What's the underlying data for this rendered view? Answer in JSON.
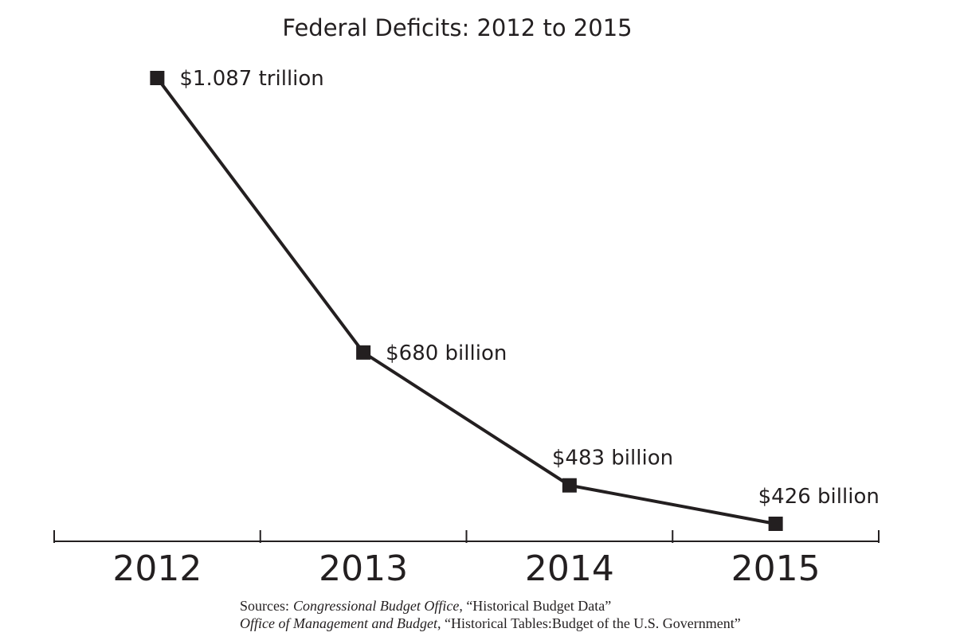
{
  "chart_data": {
    "type": "line",
    "title": "Federal Deficits: 2012 to 2015",
    "categories": [
      "2012",
      "2013",
      "2014",
      "2015"
    ],
    "series": [
      {
        "color": "#231f20",
        "values": [
          1087,
          680,
          483,
          426
        ],
        "value_labels": [
          "$1.087 trillion",
          "$680 billion",
          "$483 billion",
          "$426 billion"
        ]
      }
    ],
    "sources": [
      [
        {
          "text": "Sources:"
        },
        {
          "text": "Congressional Budget Office",
          "italic": true
        },
        {
          "text": ", “Historical Budget Data”"
        }
      ],
      [
        {
          "text": "Office of Management and Budget",
          "italic": true
        },
        {
          "text": ", “Historical Tables:Budget of the U.S. Government”"
        }
      ]
    ]
  }
}
